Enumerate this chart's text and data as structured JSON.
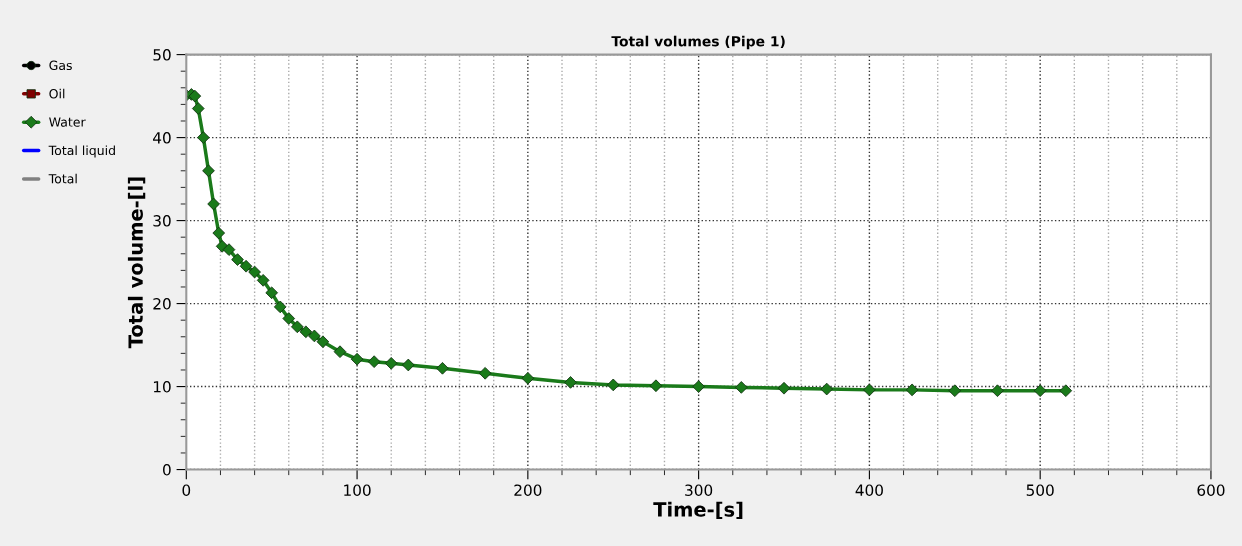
{
  "chart_data": {
    "type": "line",
    "title": "Total volumes (Pipe 1)",
    "xlabel": "Time-[s]",
    "ylabel": "Total volume-[l]",
    "xlim": [
      0,
      600
    ],
    "xticks": [
      0,
      100,
      200,
      300,
      400,
      500,
      600
    ],
    "ylim": [
      0,
      50
    ],
    "yticks": [
      0,
      10,
      20,
      30,
      40,
      50
    ],
    "grid": true,
    "legend": "left",
    "line_style": "solid",
    "series": [
      {
        "name": "Gas",
        "color": "#000000",
        "marker": "circle"
      },
      {
        "name": "Oil",
        "color": "#800000",
        "marker": "square"
      },
      {
        "name": "Water",
        "color": "#1a7a1a",
        "marker": "diamond",
        "x": [
          0,
          3,
          5,
          7,
          10,
          13,
          16,
          19,
          21,
          25,
          30,
          35,
          40,
          45,
          50,
          55,
          60,
          65,
          70,
          75,
          80,
          90,
          100,
          110,
          120,
          130,
          150,
          175,
          200,
          225,
          250,
          275,
          300,
          325,
          350,
          375,
          400,
          425,
          450,
          475,
          500,
          515
        ],
        "values": [
          45.1,
          45.2,
          45.0,
          43.5,
          40.0,
          36.0,
          32.0,
          28.5,
          26.9,
          26.5,
          25.3,
          24.5,
          23.8,
          22.8,
          21.3,
          19.6,
          18.2,
          17.2,
          16.6,
          16.1,
          15.4,
          14.2,
          13.3,
          13.0,
          12.8,
          12.6,
          12.2,
          11.6,
          11.0,
          10.5,
          10.2,
          10.1,
          10.0,
          9.9,
          9.8,
          9.7,
          9.6,
          9.6,
          9.5,
          9.5,
          9.5,
          9.5
        ]
      },
      {
        "name": "Total liquid",
        "color": "#0000ff",
        "marker": "none"
      },
      {
        "name": "Total",
        "color": "#808080",
        "marker": "none"
      }
    ]
  }
}
